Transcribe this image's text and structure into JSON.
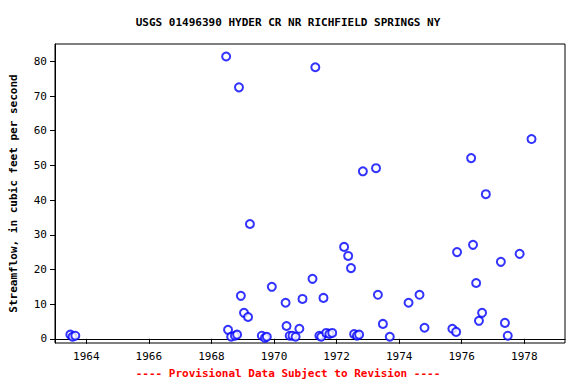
{
  "chart_data": {
    "type": "scatter",
    "title": "USGS 01496390 HYDER CR NR RICHFIELD SPRINGS NY",
    "y_label": "Streamflow, in cubic feet per second",
    "annotations": [
      "---- Provisional Data Subject to Revision ----"
    ],
    "color": "#0000ff",
    "marker": "circle",
    "grid": false,
    "x": [
      1963.49,
      1963.56,
      1963.65,
      1968.47,
      1968.53,
      1968.63,
      1968.75,
      1968.82,
      1968.88,
      1968.94,
      1969.04,
      1969.17,
      1969.23,
      1969.61,
      1969.71,
      1969.77,
      1969.93,
      1970.37,
      1970.4,
      1970.5,
      1970.59,
      1970.69,
      1970.81,
      1970.91,
      1971.23,
      1971.32,
      1971.45,
      1971.51,
      1971.58,
      1971.67,
      1971.77,
      1971.86,
      1972.24,
      1972.37,
      1972.46,
      1972.56,
      1972.65,
      1972.72,
      1972.84,
      1973.26,
      1973.32,
      1973.48,
      1973.7,
      1974.3,
      1974.65,
      1974.81,
      1975.7,
      1975.82,
      1975.85,
      1976.3,
      1976.36,
      1976.46,
      1976.55,
      1976.65,
      1976.77,
      1977.25,
      1977.38,
      1977.47,
      1977.85,
      1978.23
    ],
    "values": [
      1.2,
      0.6,
      0.9,
      81.4,
      2.6,
      0.6,
      0.9,
      1.2,
      72.5,
      12.4,
      7.5,
      6.3,
      33.1,
      0.9,
      0.3,
      0.6,
      15.0,
      10.4,
      3.7,
      0.9,
      0.9,
      0.6,
      2.9,
      11.5,
      17.3,
      78.3,
      0.9,
      0.6,
      11.8,
      1.7,
      1.4,
      1.7,
      26.5,
      23.9,
      20.4,
      1.4,
      0.9,
      1.2,
      48.3,
      49.2,
      12.7,
      4.3,
      0.6,
      10.4,
      12.7,
      3.2,
      2.9,
      2.0,
      25.0,
      52.1,
      27.1,
      16.1,
      5.2,
      7.5,
      41.7,
      22.2,
      4.6,
      0.9,
      24.5,
      57.6
    ],
    "xlim": [
      1963.0,
      1979.3
    ],
    "xticks": [
      1964,
      1966,
      1968,
      1970,
      1972,
      1974,
      1976,
      1978
    ],
    "ylim": [
      -1.2,
      85
    ],
    "yticks": [
      0,
      10,
      20,
      30,
      40,
      50,
      60,
      70,
      80
    ]
  }
}
